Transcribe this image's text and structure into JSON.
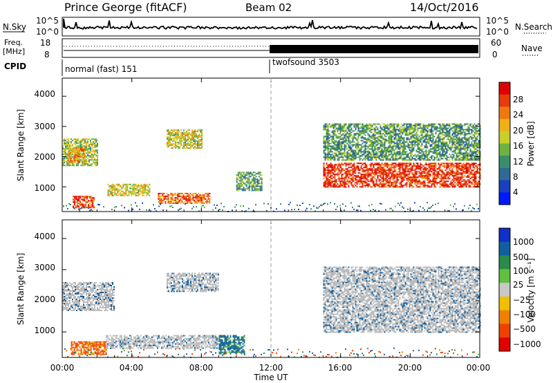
{
  "header": {
    "station": "Prince George (fitACF)",
    "beam": "Beam 02",
    "date": "14/Oct/2016"
  },
  "status_panel": {
    "nsky_label": "N.Sky",
    "nsky_ticks": [
      "10^5",
      "10^0"
    ],
    "nsearch_label": "N.Search",
    "freq_label_1": "Freq.",
    "freq_label_2": "[MHz]",
    "freq_ticks": [
      "18",
      "8"
    ],
    "nave_ticks": [
      "60",
      "0"
    ],
    "nave_label": "Nave",
    "cpid_label": "CPID",
    "cpid_1": "normal (fast) 151",
    "cpid_2": "twofsound 3503"
  },
  "x_axis": {
    "label": "Time UT",
    "ticks": [
      "00:00",
      "04:00",
      "08:00",
      "12:00",
      "16:00",
      "20:00",
      "00:00"
    ]
  },
  "power_panel": {
    "ylabel": "Slant Range [km]",
    "yticks": [
      "4000",
      "3000",
      "2000",
      "1000"
    ],
    "colorbar_label": "Power [dB]",
    "colorbar_ticks": [
      "28",
      "24",
      "20",
      "16",
      "12",
      "8",
      "4"
    ]
  },
  "velocity_panel": {
    "ylabel": "Slant Range [km]",
    "yticks": [
      "4000",
      "3000",
      "2000",
      "1000"
    ],
    "colorbar_label": "Velocity [m s⁻¹]",
    "colorbar_ticks": [
      "1000",
      "500",
      "100",
      "25",
      "−25",
      "−100",
      "−500",
      "−1000"
    ]
  },
  "colors": {
    "power_scale": [
      "#0018ff",
      "#1a3fc0",
      "#2f6a95",
      "#3b8c6a",
      "#6fb33e",
      "#c8d02a",
      "#f0b018",
      "#f07810",
      "#e83a0c",
      "#e00000"
    ],
    "velocity_scale": [
      "#1030c8",
      "#1060a0",
      "#2a8a4a",
      "#60c040",
      "#c8c8c8",
      "#f0c000",
      "#f08000",
      "#f04000",
      "#e00000"
    ],
    "ground_scatter": "#bbbbbb"
  },
  "chart_data": [
    {
      "type": "heatmap",
      "title": "Power",
      "xlabel": "Time UT",
      "ylabel": "Slant Range [km]",
      "xlim_hours": [
        0,
        24
      ],
      "ylim_km": [
        180,
        4600
      ],
      "colorbar": {
        "label": "Power [dB]",
        "range": [
          0,
          32
        ],
        "ticks": [
          4,
          8,
          12,
          16,
          20,
          24,
          28
        ]
      },
      "regions": [
        {
          "t0": 0.0,
          "t1": 2.0,
          "r0": 1700,
          "r1": 2600,
          "level": 16
        },
        {
          "t0": 0.3,
          "t1": 1.3,
          "r0": 1800,
          "r1": 2300,
          "level": 22
        },
        {
          "t0": 0.6,
          "t1": 1.8,
          "r0": 300,
          "r1": 700,
          "level": 27
        },
        {
          "t0": 2.6,
          "t1": 5.0,
          "r0": 700,
          "r1": 1100,
          "level": 18
        },
        {
          "t0": 5.5,
          "t1": 8.5,
          "r0": 450,
          "r1": 800,
          "level": 25
        },
        {
          "t0": 6.0,
          "t1": 8.0,
          "r0": 2300,
          "r1": 2900,
          "level": 18
        },
        {
          "t0": 10.0,
          "t1": 11.5,
          "r0": 900,
          "r1": 1500,
          "level": 12
        },
        {
          "t0": 15.0,
          "t1": 24.0,
          "r0": 1000,
          "r1": 1800,
          "level": 28
        },
        {
          "t0": 15.0,
          "t1": 24.0,
          "r0": 1900,
          "r1": 3100,
          "level": 12
        }
      ]
    },
    {
      "type": "heatmap",
      "title": "Velocity",
      "xlabel": "Time UT",
      "ylabel": "Slant Range [km]",
      "xlim_hours": [
        0,
        24
      ],
      "ylim_km": [
        180,
        4600
      ],
      "colorbar": {
        "label": "Velocity [m s⁻¹]",
        "ticks": [
          1000,
          500,
          100,
          25,
          -25,
          -100,
          -500,
          -1000
        ]
      },
      "regions": [
        {
          "t0": 0.0,
          "t1": 3.0,
          "r0": 1700,
          "r1": 2600,
          "velocity": 0,
          "ground_scatter": true
        },
        {
          "t0": 0.5,
          "t1": 2.5,
          "r0": 300,
          "r1": 700,
          "velocity": -150
        },
        {
          "t0": 2.5,
          "t1": 9.0,
          "r0": 500,
          "r1": 900,
          "velocity": 0,
          "ground_scatter": true
        },
        {
          "t0": 9.0,
          "t1": 10.5,
          "r0": 300,
          "r1": 900,
          "velocity": 150
        },
        {
          "t0": 6.0,
          "t1": 9.0,
          "r0": 2300,
          "r1": 2900,
          "velocity": 0,
          "ground_scatter": true
        },
        {
          "t0": 15.0,
          "t1": 24.0,
          "r0": 1000,
          "r1": 3100,
          "velocity": 0,
          "ground_scatter": true
        }
      ]
    }
  ]
}
